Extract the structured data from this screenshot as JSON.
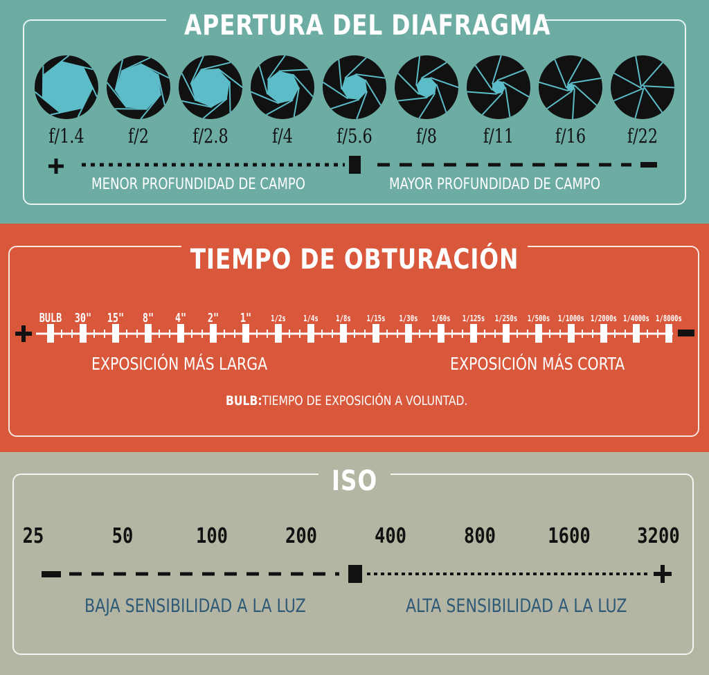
{
  "aperture": {
    "title": "APERTURA DEL DIAFRAGMA",
    "stops": [
      "f/1.4",
      "f/2",
      "f/2.8",
      "f/4",
      "f/5.6",
      "f/8",
      "f/11",
      "f/16",
      "f/22"
    ],
    "left_label": "MENOR PROFUNDIDAD DE CAMPO",
    "right_label": "MAYOR PROFUNDIDAD DE CAMPO",
    "plus": "+",
    "minus": "−",
    "opening_color": "#5cbdc8"
  },
  "shutter": {
    "title": "TIEMPO DE OBTURACIÓN",
    "speeds": [
      "BULB",
      "30\"",
      "15\"",
      "8\"",
      "4\"",
      "2\"",
      "1\"",
      "1/2s",
      "1/4s",
      "1/8s",
      "1/15s",
      "1/30s",
      "1/60s",
      "1/125s",
      "1/250s",
      "1/500s",
      "1/1000s",
      "1/2000s",
      "1/4000s",
      "1/8000s"
    ],
    "left_label": "EXPOSICIÓN MÁS LARGA",
    "right_label": "EXPOSICIÓN MÁS CORTA",
    "note_bold": "BULB:",
    "note": "TIEMPO DE EXPOSICIÓN A VOLUNTAD."
  },
  "iso": {
    "title": "ISO",
    "values": [
      "25",
      "50",
      "100",
      "200",
      "400",
      "800",
      "1600",
      "3200"
    ],
    "left_label": "BAJA SENSIBILIDAD A LA LUZ",
    "right_label": "ALTA SENSIBILIDAD A LA LUZ",
    "label_color": "#2e5a78"
  },
  "colors": {
    "aperture_bg": "#6daca3",
    "shutter_bg": "#d9583b",
    "iso_bg": "#b4b5a2"
  }
}
